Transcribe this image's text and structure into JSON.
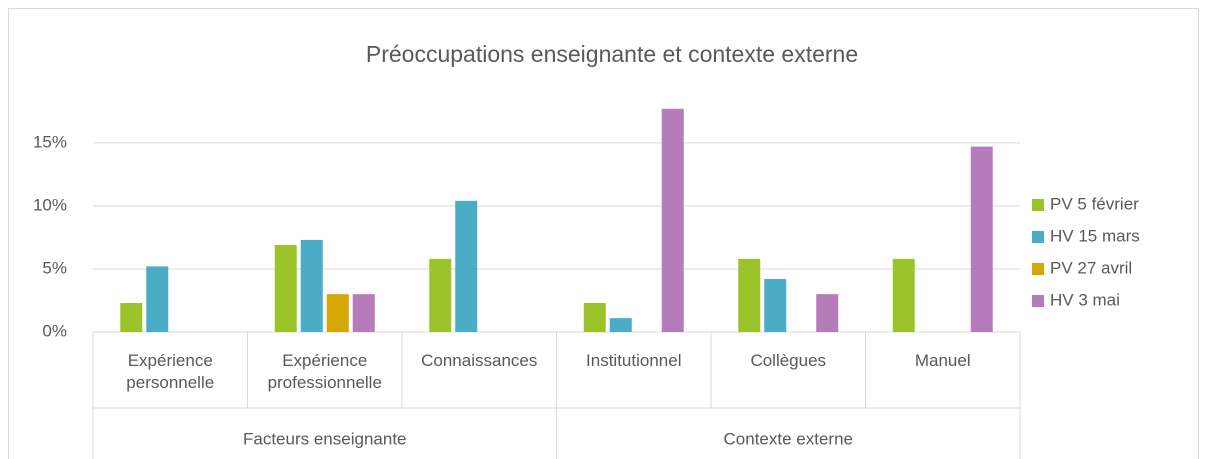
{
  "chart_data": {
    "type": "bar",
    "title": "Préoccupations enseignante et contexte externe",
    "categories": [
      "Expérience personnelle",
      "Expérience professionnelle",
      "Connaissances",
      "Institutionnel",
      "Collègues",
      "Manuel"
    ],
    "groups": [
      {
        "name": "Facteurs enseignante",
        "span": 3
      },
      {
        "name": "Contexte externe",
        "span": 3
      }
    ],
    "series": [
      {
        "name": "PV 5 février",
        "color": "#9dc32a",
        "values": [
          2.3,
          6.9,
          5.8,
          2.3,
          5.8,
          5.8
        ]
      },
      {
        "name": "HV 15 mars",
        "color": "#4bacc6",
        "values": [
          5.2,
          7.3,
          10.4,
          1.1,
          4.2,
          null
        ]
      },
      {
        "name": "PV 27 avril",
        "color": "#d4a800",
        "values": [
          null,
          3.0,
          null,
          null,
          null,
          null
        ]
      },
      {
        "name": "HV 3 mai",
        "color": "#b57bbb",
        "values": [
          null,
          3.0,
          null,
          17.7,
          3.0,
          14.7
        ]
      }
    ],
    "ylim": [
      0,
      18
    ],
    "yticks": [
      {
        "value": 0,
        "label": "0%"
      },
      {
        "value": 5,
        "label": "5%"
      },
      {
        "value": 10,
        "label": "10%"
      },
      {
        "value": 15,
        "label": "15%"
      }
    ],
    "grid": true,
    "legend": "right"
  }
}
